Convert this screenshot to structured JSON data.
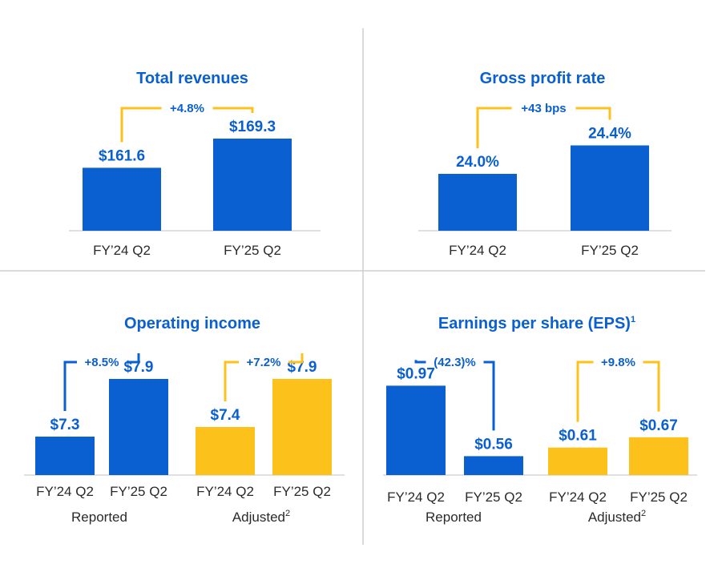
{
  "colors": {
    "blue": "#0a5fd1",
    "gold": "#fcc21b",
    "text_blue": "#0a5fd1",
    "text_dark": "#2a2a2a"
  },
  "chart_data": [
    {
      "type": "bar",
      "title": "Total revenues",
      "categories": [
        "FY’24 Q2",
        "FY’25 Q2"
      ],
      "values": [
        161.6,
        169.3
      ],
      "value_labels": [
        "$161.6",
        "$169.3"
      ],
      "change_label": "+4.8%",
      "ylim": [
        145,
        175
      ],
      "bar_colors": [
        "blue",
        "blue"
      ],
      "connector_color": "gold"
    },
    {
      "type": "bar",
      "title": "Gross profit rate",
      "categories": [
        "FY’24 Q2",
        "FY’25 Q2"
      ],
      "values": [
        24.0,
        24.4
      ],
      "value_labels": [
        "24.0%",
        "24.4%"
      ],
      "change_label": "+43 bps",
      "ylim": [
        23.2,
        24.8
      ],
      "bar_colors": [
        "blue",
        "blue"
      ],
      "connector_color": "gold"
    },
    {
      "type": "bar",
      "title": "Operating income",
      "groups": [
        {
          "label": "Reported",
          "categories": [
            "FY’24 Q2",
            "FY’25 Q2"
          ],
          "values": [
            7.3,
            7.9
          ],
          "value_labels": [
            "$7.3",
            "$7.9"
          ],
          "change_label": "+8.5%",
          "bar_color": "blue",
          "connector_color": "blue"
        },
        {
          "label": "Adjusted",
          "label_sup": "2",
          "categories": [
            "FY’24 Q2",
            "FY’25 Q2"
          ],
          "values": [
            7.4,
            7.9
          ],
          "value_labels": [
            "$7.4",
            "$7.9"
          ],
          "change_label": "+7.2%",
          "bar_color": "gold",
          "connector_color": "gold"
        }
      ],
      "ylim": [
        6.9,
        8.0
      ]
    },
    {
      "type": "bar",
      "title": "Earnings per share (EPS)",
      "title_sup": "1",
      "groups": [
        {
          "label": "Reported",
          "categories": [
            "FY’24 Q2",
            "FY’25 Q2"
          ],
          "values": [
            0.97,
            0.56
          ],
          "value_labels": [
            "$0.97",
            "$0.56"
          ],
          "change_label": "(42.3)%",
          "bar_color": "blue",
          "connector_color": "blue"
        },
        {
          "label": "Adjusted",
          "label_sup": "2",
          "categories": [
            "FY’24 Q2",
            "FY’25 Q2"
          ],
          "values": [
            0.61,
            0.67
          ],
          "value_labels": [
            "$0.61",
            "$0.67"
          ],
          "change_label": "+9.8%",
          "bar_color": "gold",
          "connector_color": "gold"
        }
      ],
      "ylim": [
        0.45,
        1.0
      ]
    }
  ]
}
